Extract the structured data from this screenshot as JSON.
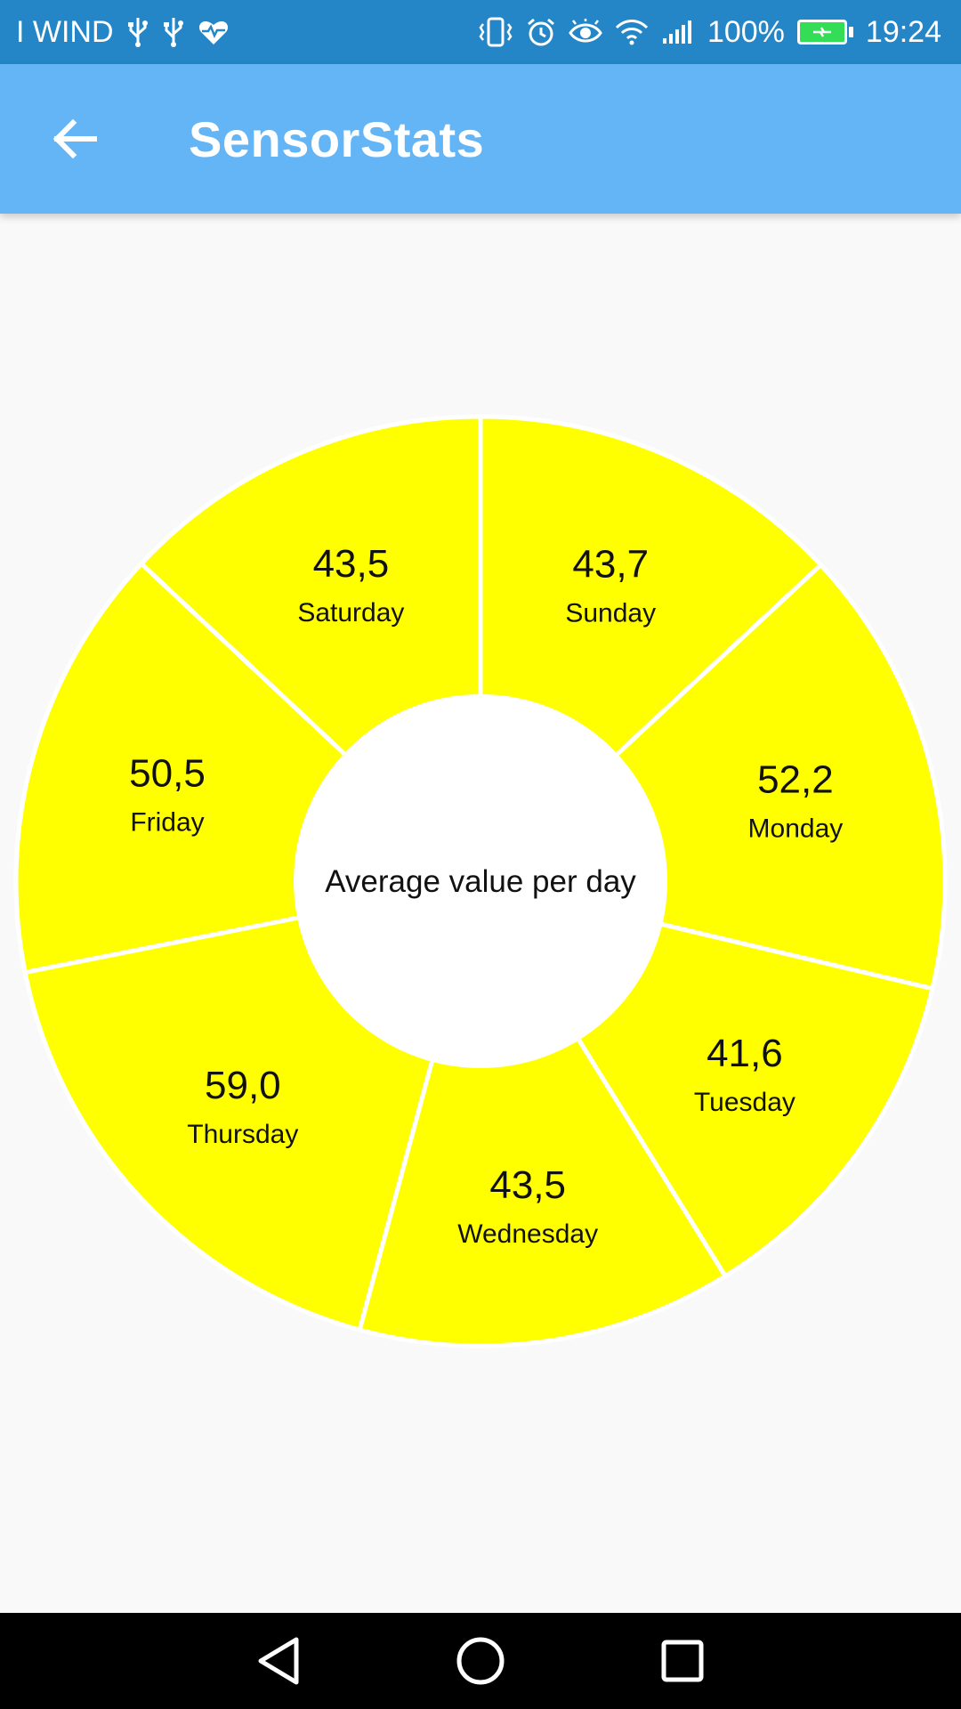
{
  "status_bar": {
    "carrier": "I WIND",
    "battery": "100%",
    "time": "19:24",
    "icons": [
      "usb-icon",
      "usb-icon",
      "heart-pulse-icon",
      "vibrate-icon",
      "alarm-icon",
      "eye-icon",
      "wifi-icon",
      "signal-icon",
      "battery-charging-icon"
    ]
  },
  "app_bar": {
    "title": "SensorStats",
    "back_icon": "arrow-back-icon"
  },
  "chart_data": {
    "type": "pie",
    "center_label": "Average value per day",
    "slice_color": "#ffff00",
    "categories": [
      "Sunday",
      "Monday",
      "Tuesday",
      "Wednesday",
      "Thursday",
      "Friday",
      "Saturday"
    ],
    "values": [
      43.7,
      52.2,
      41.6,
      43.5,
      59.0,
      50.5,
      43.5
    ],
    "value_labels": [
      "43,7",
      "52,2",
      "41,6",
      "43,5",
      "59,0",
      "50,5",
      "43,5"
    ]
  },
  "nav_bar": {
    "icons": [
      "back-triangle-icon",
      "home-circle-icon",
      "recents-square-icon"
    ]
  },
  "colors": {
    "status_bar": "#2486c6",
    "app_bar": "#64b5f6",
    "background": "#f9f9f9",
    "hole": "#ffffff"
  }
}
